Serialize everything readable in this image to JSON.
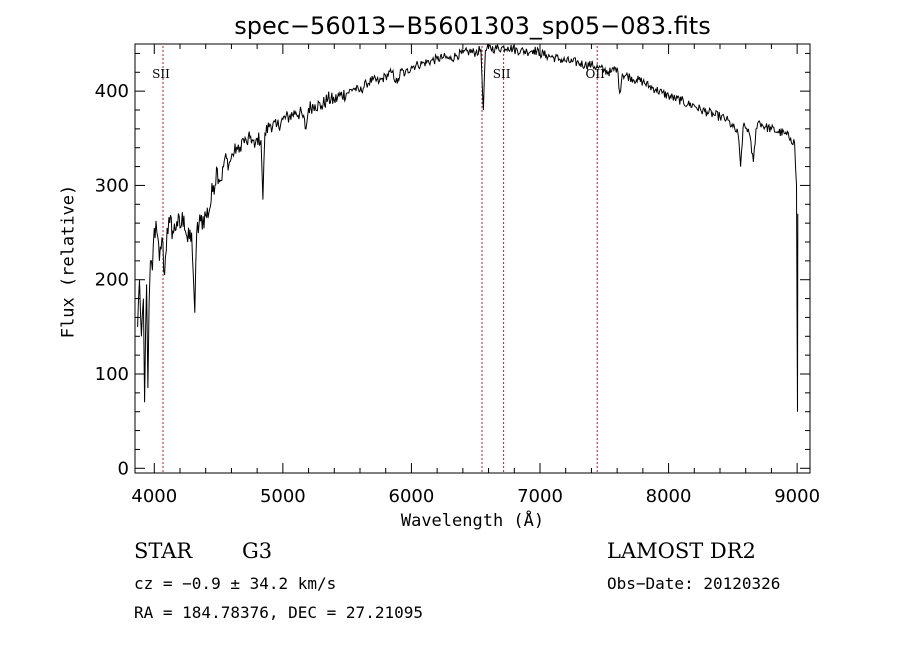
{
  "chart_data": {
    "type": "line",
    "title": "spec−56013−B5601303_sp05−083.fits",
    "xlabel": "Wavelength (Å)",
    "ylabel": "Flux (relative)",
    "xlim": [
      3850,
      9100
    ],
    "ylim": [
      -5,
      450
    ],
    "xticks": [
      4000,
      5000,
      6000,
      7000,
      8000,
      9000
    ],
    "yticks": [
      0,
      100,
      200,
      300,
      400
    ],
    "grid": false,
    "series": [
      {
        "values": [
          [
            3870,
            150
          ],
          [
            3885,
            200
          ],
          [
            3900,
            140
          ],
          [
            3915,
            180
          ],
          [
            3925,
            70
          ],
          [
            3940,
            195
          ],
          [
            3950,
            85
          ],
          [
            3960,
            175
          ],
          [
            3970,
            220
          ],
          [
            3985,
            210
          ],
          [
            4000,
            255
          ],
          [
            4020,
            250
          ],
          [
            4040,
            220
          ],
          [
            4060,
            245
          ],
          [
            4080,
            205
          ],
          [
            4100,
            255
          ],
          [
            4120,
            260
          ],
          [
            4150,
            250
          ],
          [
            4175,
            262
          ],
          [
            4200,
            255
          ],
          [
            4230,
            268
          ],
          [
            4260,
            240
          ],
          [
            4290,
            250
          ],
          [
            4305,
            200
          ],
          [
            4315,
            165
          ],
          [
            4330,
            250
          ],
          [
            4360,
            262
          ],
          [
            4400,
            268
          ],
          [
            4430,
            275
          ],
          [
            4460,
            300
          ],
          [
            4490,
            318
          ],
          [
            4520,
            305
          ],
          [
            4550,
            330
          ],
          [
            4580,
            322
          ],
          [
            4610,
            333
          ],
          [
            4640,
            340
          ],
          [
            4660,
            335
          ],
          [
            4680,
            348
          ],
          [
            4720,
            345
          ],
          [
            4750,
            352
          ],
          [
            4780,
            340
          ],
          [
            4800,
            350
          ],
          [
            4830,
            348
          ],
          [
            4845,
            285
          ],
          [
            4860,
            355
          ],
          [
            4900,
            365
          ],
          [
            4950,
            362
          ],
          [
            5000,
            370
          ],
          [
            5050,
            373
          ],
          [
            5100,
            378
          ],
          [
            5150,
            375
          ],
          [
            5180,
            360
          ],
          [
            5200,
            382
          ],
          [
            5250,
            386
          ],
          [
            5300,
            384
          ],
          [
            5350,
            392
          ],
          [
            5400,
            390
          ],
          [
            5450,
            396
          ],
          [
            5500,
            398
          ],
          [
            5550,
            403
          ],
          [
            5600,
            400
          ],
          [
            5650,
            408
          ],
          [
            5700,
            412
          ],
          [
            5750,
            410
          ],
          [
            5800,
            416
          ],
          [
            5850,
            420
          ],
          [
            5890,
            408
          ],
          [
            5920,
            422
          ],
          [
            5950,
            418
          ],
          [
            6000,
            426
          ],
          [
            6050,
            428
          ],
          [
            6100,
            430
          ],
          [
            6150,
            432
          ],
          [
            6200,
            434
          ],
          [
            6250,
            436
          ],
          [
            6300,
            434
          ],
          [
            6350,
            438
          ],
          [
            6400,
            440
          ],
          [
            6450,
            442
          ],
          [
            6500,
            441
          ],
          [
            6540,
            444
          ],
          [
            6560,
            380
          ],
          [
            6575,
            443
          ],
          [
            6600,
            446
          ],
          [
            6650,
            445
          ],
          [
            6700,
            446
          ],
          [
            6750,
            447
          ],
          [
            6800,
            444
          ],
          [
            6850,
            443
          ],
          [
            6900,
            442
          ],
          [
            6950,
            444
          ],
          [
            7000,
            440
          ],
          [
            7050,
            438
          ],
          [
            7100,
            436
          ],
          [
            7150,
            434
          ],
          [
            7200,
            432
          ],
          [
            7250,
            431
          ],
          [
            7300,
            430
          ],
          [
            7350,
            428
          ],
          [
            7400,
            428
          ],
          [
            7450,
            425
          ],
          [
            7500,
            422
          ],
          [
            7550,
            420
          ],
          [
            7600,
            425
          ],
          [
            7620,
            398
          ],
          [
            7640,
            418
          ],
          [
            7700,
            415
          ],
          [
            7750,
            412
          ],
          [
            7800,
            410
          ],
          [
            7850,
            405
          ],
          [
            7900,
            402
          ],
          [
            7950,
            398
          ],
          [
            8000,
            395
          ],
          [
            8050,
            392
          ],
          [
            8100,
            390
          ],
          [
            8150,
            386
          ],
          [
            8200,
            385
          ],
          [
            8250,
            380
          ],
          [
            8300,
            378
          ],
          [
            8350,
            375
          ],
          [
            8400,
            373
          ],
          [
            8450,
            370
          ],
          [
            8500,
            362
          ],
          [
            8540,
            355
          ],
          [
            8560,
            320
          ],
          [
            8580,
            362
          ],
          [
            8620,
            360
          ],
          [
            8660,
            325
          ],
          [
            8680,
            360
          ],
          [
            8700,
            368
          ],
          [
            8750,
            362
          ],
          [
            8800,
            360
          ],
          [
            8850,
            357
          ],
          [
            8900,
            355
          ],
          [
            8950,
            350
          ],
          [
            8980,
            345
          ],
          [
            8995,
            300
          ],
          [
            9000,
            150
          ],
          [
            9003,
            60
          ],
          [
            9005,
            270
          ]
        ]
      }
    ],
    "lines": [
      {
        "x": 4068,
        "label": "SII"
      },
      {
        "x": 6549,
        "label": ""
      },
      {
        "x": 6717,
        "label": "SII"
      },
      {
        "x": 7445,
        "label": "OII"
      }
    ],
    "line_color": "#b22222",
    "annotations": {
      "object_class": "STAR",
      "subclass": "G3",
      "redshift": "cz = −0.9 ± 34.2 km/s",
      "coords": "RA = 184.78376, DEC =  27.21095",
      "survey": "LAMOST DR2",
      "obs_date": "Obs−Date: 20120326"
    }
  }
}
